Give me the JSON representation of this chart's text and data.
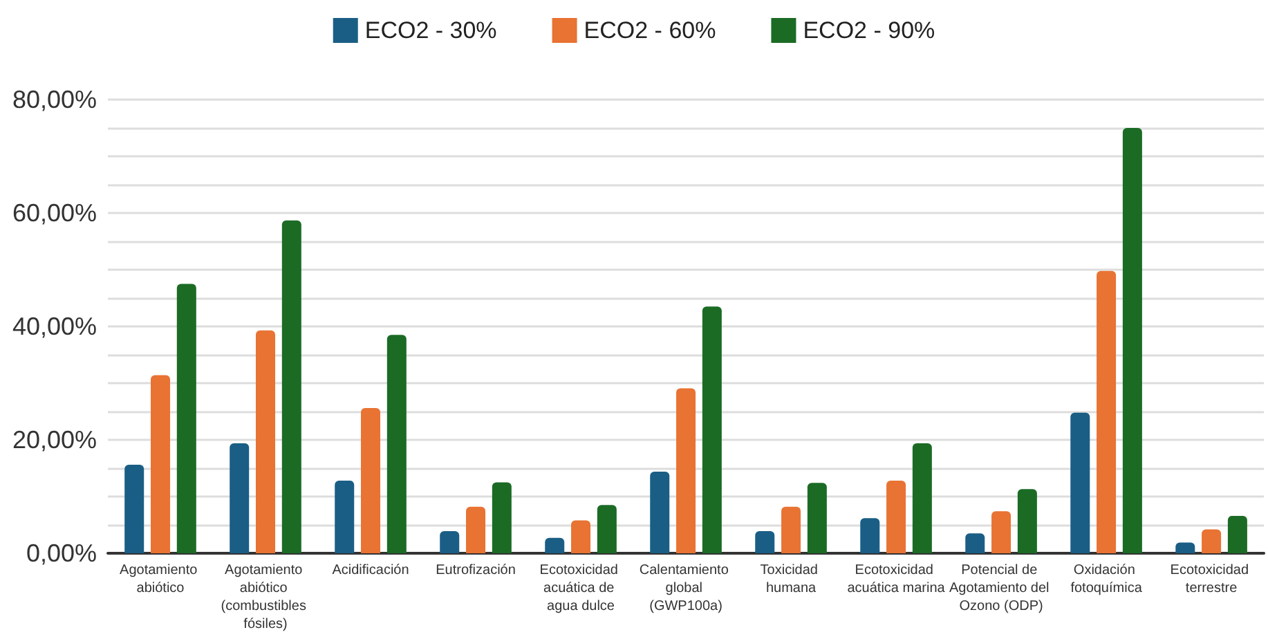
{
  "chart_data": {
    "type": "bar",
    "categories": [
      "Agotamiento abiótico",
      "Agotamiento abiótico (combustibles fósiles)",
      "Acidificación",
      "Eutrofización",
      "Ecotoxicidad acuática de agua dulce",
      "Calentamiento global (GWP100a)",
      "Toxicidad humana",
      "Ecotoxicidad acuática marina",
      "Potencial de Agotamiento del Ozono (ODP)",
      "Oxidación fotoquímica",
      "Ecotoxicidad terrestre"
    ],
    "series": [
      {
        "name": "ECO2 - 30%",
        "color": "#1a5e85",
        "values": [
          15.6,
          19.4,
          12.8,
          3.9,
          2.7,
          14.4,
          3.9,
          6.2,
          3.5,
          24.8,
          1.9
        ]
      },
      {
        "name": "ECO2 - 60%",
        "color": "#e87333",
        "values": [
          31.4,
          39.3,
          25.6,
          8.2,
          5.8,
          29.1,
          8.2,
          12.8,
          7.4,
          49.8,
          4.2
        ]
      },
      {
        "name": "ECO2 - 90%",
        "color": "#1b6b25",
        "values": [
          47.5,
          58.7,
          38.5,
          12.5,
          8.5,
          43.5,
          12.4,
          19.4,
          11.3,
          75.0,
          6.6
        ]
      }
    ],
    "ylim": [
      0,
      80
    ],
    "yticks": [
      {
        "value": 0,
        "label": "0,00%"
      },
      {
        "value": 5,
        "label": null
      },
      {
        "value": 10,
        "label": null
      },
      {
        "value": 15,
        "label": null
      },
      {
        "value": 20,
        "label": "20,00%"
      },
      {
        "value": 25,
        "label": null
      },
      {
        "value": 30,
        "label": null
      },
      {
        "value": 35,
        "label": null
      },
      {
        "value": 40,
        "label": "40,00%"
      },
      {
        "value": 45,
        "label": null
      },
      {
        "value": 50,
        "label": null
      },
      {
        "value": 55,
        "label": null
      },
      {
        "value": 60,
        "label": "60,00%"
      },
      {
        "value": 65,
        "label": null
      },
      {
        "value": 70,
        "label": null
      },
      {
        "value": 75,
        "label": null
      },
      {
        "value": 80,
        "label": "80,00%"
      }
    ],
    "grid": true,
    "legend": "top"
  }
}
